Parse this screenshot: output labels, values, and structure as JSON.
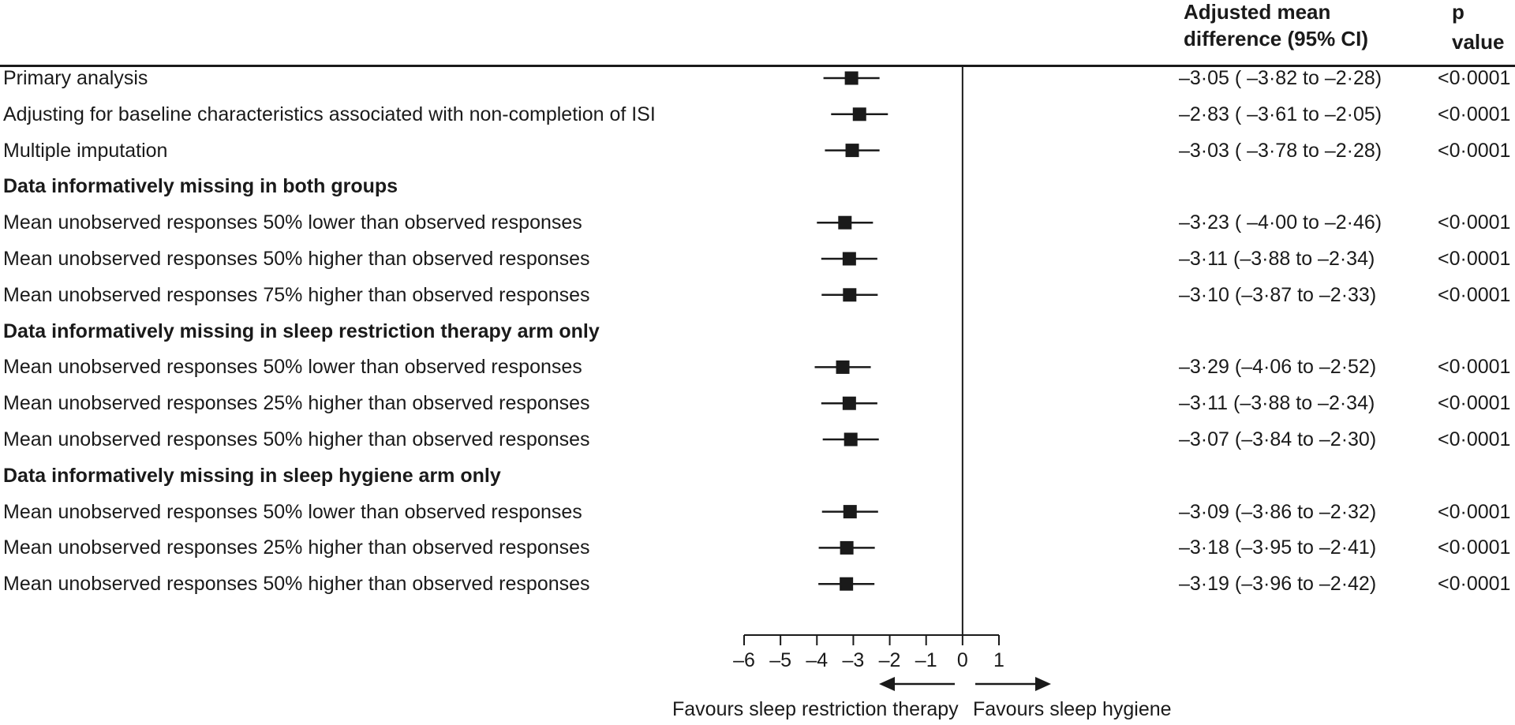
{
  "chart_data": {
    "type": "forest",
    "columns": {
      "estimate_header_line1": "Adjusted mean",
      "estimate_header_line2": "difference (95% CI)",
      "p_header": "p value"
    },
    "rows": [
      {
        "label": "Primary analysis",
        "section": false,
        "mean": -3.05,
        "lo": -3.82,
        "hi": -2.28,
        "estimate_text": "–3·05 ( –3·82 to –2·28)",
        "p": "<0·0001"
      },
      {
        "label": "Adjusting for baseline characteristics associated with non-completion of ISI",
        "section": false,
        "mean": -2.83,
        "lo": -3.61,
        "hi": -2.05,
        "estimate_text": "–2·83 ( –3·61 to –2·05)",
        "p": "<0·0001"
      },
      {
        "label": "Multiple imputation",
        "section": false,
        "mean": -3.03,
        "lo": -3.78,
        "hi": -2.28,
        "estimate_text": "–3·03 ( –3·78 to –2·28)",
        "p": "<0·0001"
      },
      {
        "label": "Data informatively missing in both groups",
        "section": true
      },
      {
        "label": "Mean unobserved responses 50% lower than observed responses",
        "section": false,
        "mean": -3.23,
        "lo": -4.0,
        "hi": -2.46,
        "estimate_text": "–3·23 ( –4·00 to –2·46)",
        "p": "<0·0001"
      },
      {
        "label": "Mean unobserved responses 50% higher than observed responses",
        "section": false,
        "mean": -3.11,
        "lo": -3.88,
        "hi": -2.34,
        "estimate_text": "–3·11 (–3·88 to –2·34)",
        "p": "<0·0001"
      },
      {
        "label": "Mean unobserved responses 75% higher than observed responses",
        "section": false,
        "mean": -3.1,
        "lo": -3.87,
        "hi": -2.33,
        "estimate_text": "–3·10 (–3·87 to –2·33)",
        "p": "<0·0001"
      },
      {
        "label": "Data informatively missing in sleep restriction therapy arm only",
        "section": true
      },
      {
        "label": "Mean unobserved responses 50% lower than observed responses",
        "section": false,
        "mean": -3.29,
        "lo": -4.06,
        "hi": -2.52,
        "estimate_text": "–3·29 (–4·06 to –2·52)",
        "p": "<0·0001"
      },
      {
        "label": "Mean unobserved responses 25% higher than observed responses",
        "section": false,
        "mean": -3.11,
        "lo": -3.88,
        "hi": -2.34,
        "estimate_text": "–3·11 (–3·88 to –2·34)",
        "p": "<0·0001"
      },
      {
        "label": "Mean unobserved responses 50% higher than observed responses",
        "section": false,
        "mean": -3.07,
        "lo": -3.84,
        "hi": -2.3,
        "estimate_text": "–3·07 (–3·84 to –2·30)",
        "p": "<0·0001"
      },
      {
        "label": "Data informatively missing in sleep hygiene arm only",
        "section": true
      },
      {
        "label": "Mean unobserved responses 50% lower than observed responses",
        "section": false,
        "mean": -3.09,
        "lo": -3.86,
        "hi": -2.32,
        "estimate_text": "–3·09 (–3·86 to –2·32)",
        "p": "<0·0001"
      },
      {
        "label": "Mean unobserved responses 25% higher than observed responses",
        "section": false,
        "mean": -3.18,
        "lo": -3.95,
        "hi": -2.41,
        "estimate_text": "–3·18 (–3·95 to –2·41)",
        "p": "<0·0001"
      },
      {
        "label": "Mean unobserved responses 50% higher than observed responses",
        "section": false,
        "mean": -3.19,
        "lo": -3.96,
        "hi": -2.42,
        "estimate_text": "–3·19 (–3·96 to –2·42)",
        "p": "<0·0001"
      }
    ],
    "xaxis": {
      "range": [
        -6,
        1
      ],
      "ticks": [
        -6,
        -5,
        -4,
        -3,
        -2,
        -1,
        0,
        1
      ],
      "tick_labels": [
        "–6",
        "–5",
        "–4",
        "–3",
        "–2",
        "–1",
        "0",
        "1"
      ],
      "reference_line": 0
    },
    "favours_left": "Favours sleep restriction therapy",
    "favours_right": "Favours sleep hygiene"
  },
  "colors": {
    "ink": "#1a1a1a"
  }
}
